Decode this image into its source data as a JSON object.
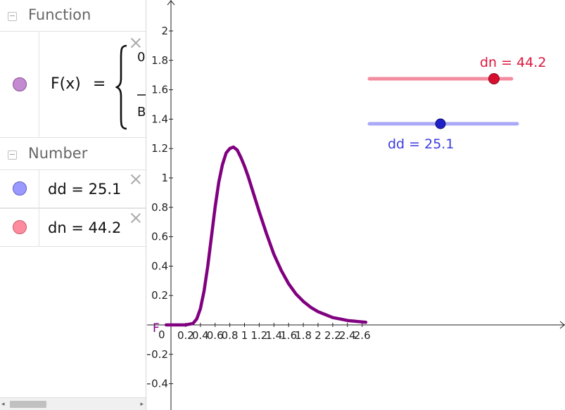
{
  "algebra": {
    "groups": {
      "function": "Function",
      "number": "Number"
    },
    "function_row": {
      "name": "F(x)",
      "equals": "=",
      "piece_top": "0",
      "piece_bottom": "B",
      "color": "#c48ad1"
    },
    "number_rows": [
      {
        "text": "dd = 25.1",
        "color": "#9999ff"
      },
      {
        "text": "dn = 44.2",
        "color": "#ff8b9e"
      }
    ]
  },
  "graphics": {
    "curve_color": "#800080",
    "sliders": {
      "dn": {
        "label": "dn = 44.2",
        "value": 44.2,
        "track_color": "#f48ca0",
        "knob_color": "#d60f2f",
        "label_color": "#dc143c"
      },
      "dd": {
        "label": "dd = 25.1",
        "value": 25.1,
        "track_color": "#a9a9f8",
        "knob_color": "#2020c8",
        "label_color": "#3b3be0"
      }
    },
    "curve_label": "F",
    "x_ticks": [
      "0.2",
      "0.4",
      "0.6",
      "0.8",
      "1",
      "1.2",
      "1.4",
      "1.6",
      "1.8",
      "2",
      "2.2",
      "2.4",
      "2.6"
    ],
    "y_ticks_pos": [
      "0.2",
      "0.4",
      "0.6",
      "0.8",
      "1",
      "1.2",
      "1.4",
      "1.6",
      "1.8",
      "2"
    ],
    "y_ticks_neg": [
      "−0.2",
      "−0.4"
    ],
    "origin_label": "0"
  },
  "chart_data": {
    "type": "line",
    "title": "",
    "xlabel": "",
    "ylabel": "",
    "xlim": [
      -0.05,
      2.65
    ],
    "ylim": [
      -0.5,
      2.15
    ],
    "series": [
      {
        "name": "F",
        "x": [
          0.0,
          0.2,
          0.3,
          0.35,
          0.4,
          0.45,
          0.5,
          0.55,
          0.6,
          0.65,
          0.7,
          0.75,
          0.8,
          0.85,
          0.9,
          0.95,
          1.0,
          1.05,
          1.1,
          1.15,
          1.2,
          1.3,
          1.4,
          1.5,
          1.6,
          1.7,
          1.8,
          1.9,
          2.0,
          2.1,
          2.2,
          2.3,
          2.4,
          2.5,
          2.6,
          2.65
        ],
        "y": [
          0.0,
          0.0,
          0.01,
          0.04,
          0.11,
          0.23,
          0.4,
          0.6,
          0.8,
          0.97,
          1.09,
          1.17,
          1.2,
          1.21,
          1.19,
          1.14,
          1.08,
          1.01,
          0.93,
          0.85,
          0.77,
          0.62,
          0.48,
          0.37,
          0.28,
          0.21,
          0.16,
          0.12,
          0.09,
          0.07,
          0.05,
          0.04,
          0.03,
          0.025,
          0.02,
          0.018
        ]
      }
    ]
  }
}
